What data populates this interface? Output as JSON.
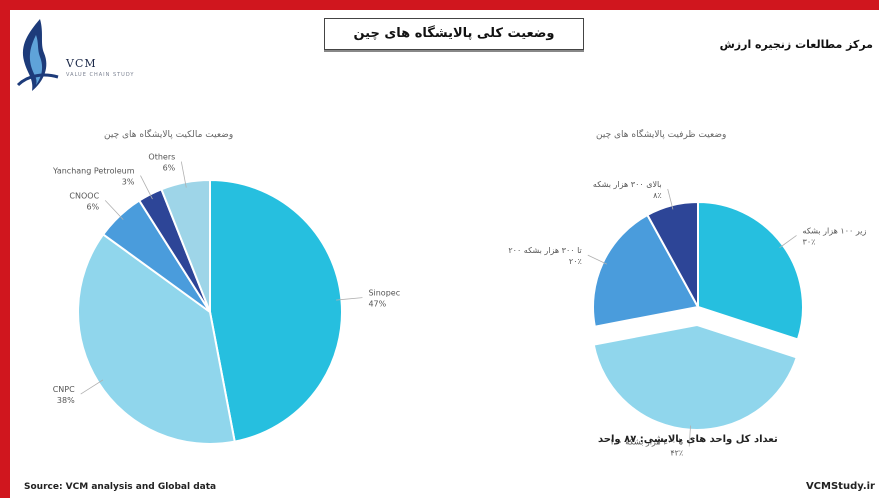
{
  "header": {
    "logo_text": "VCM",
    "logo_sub": "VALUE CHAIN STUDY",
    "main_title": "وضعیت کلی پالایشگاه های چین",
    "right_title": "مرکز مطالعات زنجیره ارزش"
  },
  "footer": {
    "source": "Source: VCM analysis and Global data",
    "brand": "VCMStudy.ir"
  },
  "colors": {
    "frame": "#d0161e",
    "slice_a": "#26bfdf",
    "slice_b": "#90d6ec",
    "slice_c": "#4a9cdc",
    "slice_d": "#2d4597",
    "slice_e": "#9ed5e8"
  },
  "chart_data": [
    {
      "type": "pie",
      "title": "وضعیت مالکیت پالایشگاه های چین",
      "slices": [
        {
          "label": "Sinopec",
          "value": 47,
          "value_text": "47%",
          "color": "#26bfdf"
        },
        {
          "label": "CNPC",
          "value": 38,
          "value_text": "38%",
          "color": "#90d6ec"
        },
        {
          "label": "CNOOC",
          "value": 6,
          "value_text": "6%",
          "color": "#4a9cdc"
        },
        {
          "label": "Yanchang Petroleum",
          "value": 3,
          "value_text": "3%",
          "color": "#2d4597"
        },
        {
          "label": "Others",
          "value": 6,
          "value_text": "6%",
          "color": "#9ed5e8"
        }
      ]
    },
    {
      "type": "pie",
      "title": "وضعیت ظرفیت پالایشگاه های چین",
      "slices": [
        {
          "label": "زیر ۱۰۰ هزار بشکه",
          "value": 30,
          "value_text": "۳۰٪",
          "color": "#26bfdf"
        },
        {
          "label": "۱۰۰ تا ۲۰۰ هزار بشکه",
          "value": 42,
          "value_text": "۴۲٪",
          "color": "#90d6ec"
        },
        {
          "label": "۲۰۰ تا ۳۰۰ هزار بشکه",
          "value": 20,
          "value_text": "۲۰٪",
          "color": "#4a9cdc"
        },
        {
          "label": "بالای ۳۰۰ هزار بشکه",
          "value": 8,
          "value_text": "۸٪",
          "color": "#2d4597"
        }
      ],
      "note": "تعداد کل واحد های پالایشی: ۸۷ واحد"
    }
  ]
}
